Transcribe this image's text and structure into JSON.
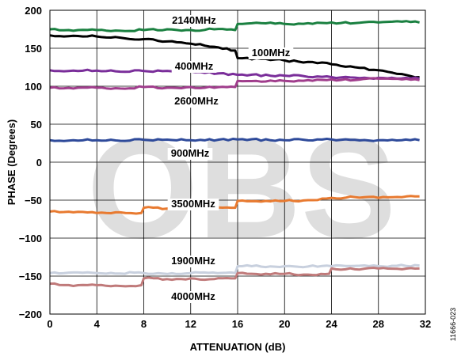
{
  "figure_id": "11666-023",
  "watermark": "OBS",
  "chart_data": {
    "type": "line",
    "xlabel": "ATTENUATION (dB)",
    "ylabel": "PHASE (Degrees)",
    "xlim": [
      0,
      32
    ],
    "ylim": [
      -200,
      200
    ],
    "xticks": [
      0,
      4,
      8,
      12,
      16,
      20,
      24,
      28,
      32
    ],
    "yticks": [
      200,
      150,
      100,
      50,
      0,
      -50,
      -100,
      -150,
      -200
    ],
    "ytick_labels": [
      "200",
      "150",
      "100",
      "50",
      "0",
      "−50",
      "−100",
      "−150",
      "−200"
    ],
    "grid": true,
    "legend": "none (inline series labels)",
    "series": [
      {
        "name": "2140MHz",
        "color": "#1a8040",
        "x": [
          0,
          2,
          4,
          6,
          8,
          10,
          12,
          14,
          15.8,
          16,
          18,
          20,
          22,
          24,
          26,
          28,
          30,
          31.5
        ],
        "y": [
          175,
          173,
          174,
          173,
          174,
          175,
          174,
          175,
          174,
          182,
          183,
          182,
          183,
          184,
          183,
          184,
          185,
          184
        ]
      },
      {
        "name": "100MHz",
        "color": "#000000",
        "x": [
          0,
          2,
          4,
          6,
          8,
          10,
          12,
          14,
          15.8,
          16,
          18,
          20,
          22,
          24,
          26,
          28,
          30,
          31.5
        ],
        "y": [
          167,
          166.5,
          165.5,
          164,
          162,
          159,
          156,
          152,
          147,
          137,
          136,
          134,
          132,
          129,
          125,
          121,
          116,
          112
        ]
      },
      {
        "name": "400MHz",
        "color": "#7a2e9a",
        "x": [
          0,
          4,
          8,
          12,
          16,
          20,
          24,
          28,
          31.5
        ],
        "y": [
          121,
          120.5,
          120,
          119.5,
          115,
          114,
          112,
          111,
          110
        ]
      },
      {
        "name": "2600MHz",
        "color": "#a03d8c",
        "x": [
          0,
          2,
          4,
          6,
          8,
          10,
          12,
          14,
          15.8,
          16,
          18,
          20,
          22,
          24,
          26,
          28,
          30,
          31.5
        ],
        "y": [
          98,
          97,
          98,
          97,
          99,
          98,
          99,
          98,
          99,
          107,
          106,
          107,
          108,
          109,
          108,
          110,
          109,
          108
        ]
      },
      {
        "name": "900MHz",
        "color": "#2e4a9a",
        "x": [
          0,
          4,
          8,
          12,
          16,
          20,
          24,
          28,
          31.5
        ],
        "y": [
          29,
          29,
          29.5,
          29,
          30,
          29,
          30,
          29,
          29
        ]
      },
      {
        "name": "3500MHz",
        "color": "#e87a30",
        "x": [
          0,
          2,
          4,
          6,
          7.8,
          8,
          10,
          12,
          14,
          15.8,
          16,
          18,
          20,
          22,
          24,
          26,
          28,
          30,
          31.5
        ],
        "y": [
          -65,
          -66,
          -67,
          -66,
          -67,
          -60,
          -61,
          -60,
          -61,
          -60,
          -51,
          -52,
          -51,
          -50,
          -47,
          -46,
          -47,
          -46,
          -45
        ]
      },
      {
        "name": "1900MHz",
        "color": "#c8d0de",
        "x": [
          0,
          4,
          8,
          12,
          15.8,
          16,
          20,
          24,
          28,
          31.5
        ],
        "y": [
          -146,
          -146,
          -146,
          -146,
          -146,
          -137,
          -137,
          -137,
          -137,
          -136
        ]
      },
      {
        "name": "4000MHz",
        "color": "#c07a7a",
        "x": [
          0,
          2,
          4,
          6,
          7.8,
          8,
          10,
          12,
          14,
          15.8,
          16,
          18,
          20,
          22,
          23.8,
          24,
          26,
          28,
          30,
          31.5
        ],
        "y": [
          -160,
          -163,
          -162,
          -163,
          -162,
          -153,
          -154,
          -153,
          -154,
          -153,
          -146,
          -148,
          -147,
          -148,
          -147,
          -140,
          -141,
          -140,
          -141,
          -140
        ]
      }
    ]
  }
}
